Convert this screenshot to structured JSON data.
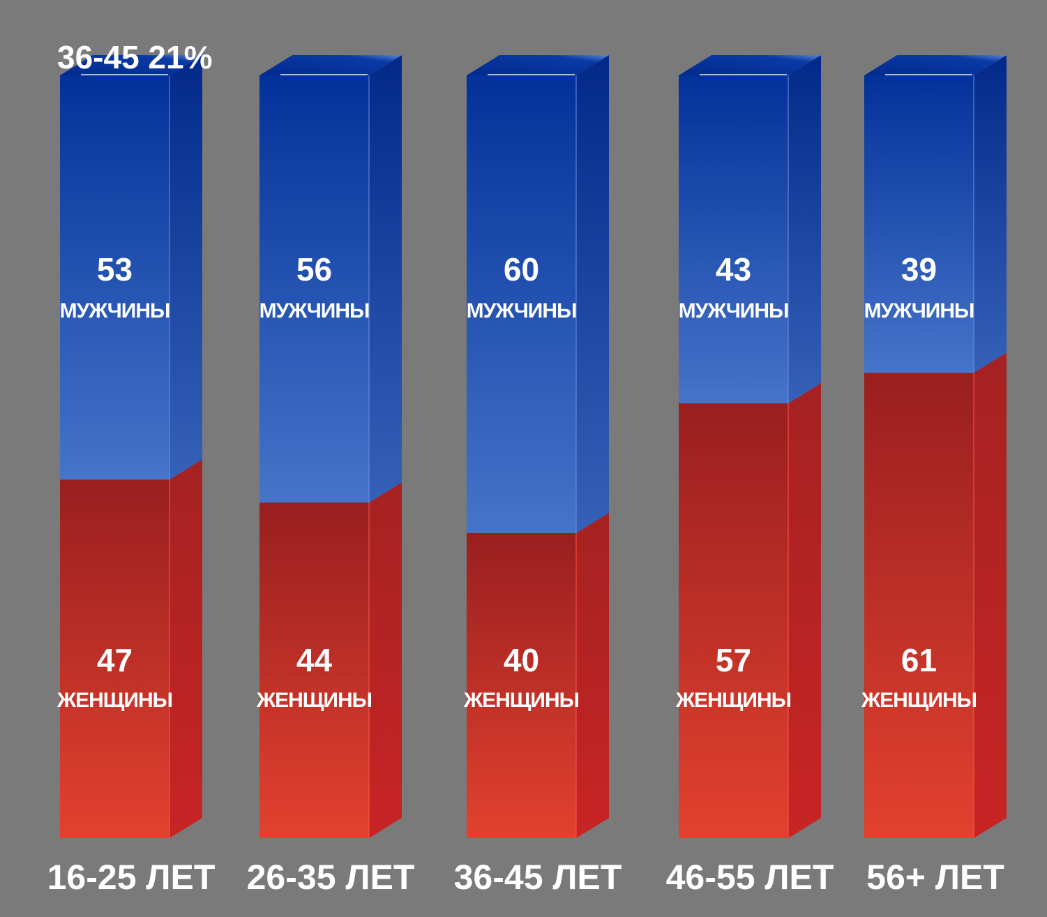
{
  "overlay_text": "36-45 21%",
  "chart_data": {
    "type": "bar",
    "stacked": true,
    "style": "3d",
    "categories": [
      "16-25 ЛЕТ",
      "26-35 ЛЕТ",
      "36-45 ЛЕТ",
      "46-55 ЛЕТ",
      "56+ ЛЕТ"
    ],
    "series": [
      {
        "name": "ЖЕНЩИНЫ",
        "values": [
          47,
          44,
          40,
          57,
          61
        ],
        "color": "#b52424"
      },
      {
        "name": "МУЖЧИНЫ",
        "values": [
          53,
          56,
          60,
          43,
          39
        ],
        "color": "#1a3f9e"
      }
    ],
    "ylim": [
      0,
      100
    ],
    "grid": false,
    "legend": "none"
  }
}
